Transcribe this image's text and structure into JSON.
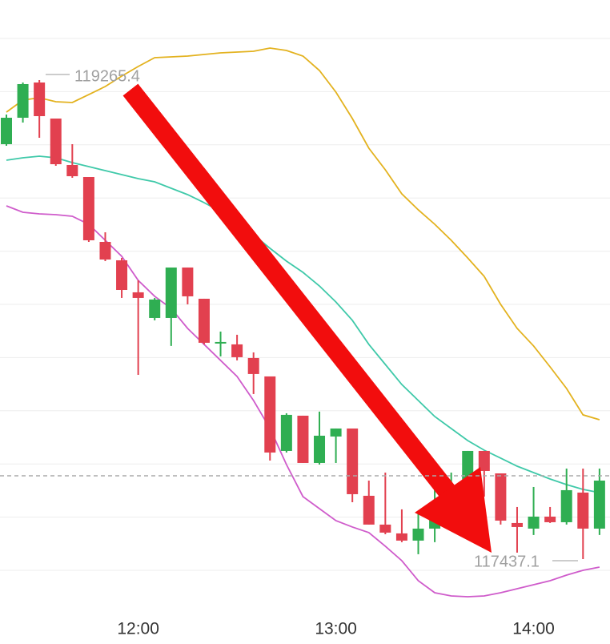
{
  "chart_data": {
    "type": "candlestick",
    "categories": [
      null,
      null,
      null,
      null,
      null,
      null,
      null,
      null,
      "12:00",
      null,
      null,
      null,
      null,
      null,
      null,
      null,
      null,
      null,
      null,
      null,
      "13:00",
      null,
      null,
      null,
      null,
      null,
      null,
      null,
      null,
      null,
      null,
      null,
      "14:00",
      null,
      null,
      null,
      null
    ],
    "open": [
      119020.8,
      119121.7,
      119256.2,
      119118.6,
      118941.3,
      118895.4,
      118647.8,
      118577.5,
      118455.3,
      118357.4,
      118357.4,
      118550.0,
      118430.8,
      118262.7,
      118256.6,
      118204.6,
      118134.3,
      117849.9,
      117984.4,
      117804.0,
      117904.9,
      117935.5,
      117678.7,
      117568.7,
      117535.1,
      117507.6,
      117553.4,
      117614.5,
      117718.4,
      117849.9,
      117764.2,
      117574.8,
      117553.4,
      117599.2,
      117577.8,
      117690.9,
      117553.4
    ],
    "high": [
      119133.9,
      119256.2,
      119265.4,
      119118.6,
      119020.8,
      118895.4,
      118684.5,
      118586.7,
      118501.0,
      118433.9,
      118550.0,
      118550.0,
      118430.8,
      118305.5,
      118293.3,
      118226.0,
      118134.3,
      117993.7,
      117984.4,
      117999.8,
      117935.5,
      117935.5,
      117736.7,
      117767.3,
      117626.8,
      117608.4,
      117706.2,
      117767.3,
      117849.9,
      117849.9,
      117764.2,
      117635.9,
      117712.3,
      117635.9,
      117782.6,
      117782.6,
      117782.6
    ],
    "low": [
      119014.7,
      119103.3,
      119045.2,
      118938.2,
      118892.4,
      118647.8,
      118574.4,
      118433.9,
      118140.4,
      118348.3,
      118250.5,
      118409.4,
      118256.6,
      118210.7,
      118195.5,
      118067.1,
      117813.2,
      117843.8,
      117804.0,
      117797.8,
      117804.0,
      117654.2,
      117568.7,
      117532.0,
      117501.5,
      117455.6,
      117501.5,
      117599.2,
      117690.9,
      117675.6,
      117568.7,
      117461.7,
      117529.0,
      117574.8,
      117568.7,
      117437.1,
      117529.0
    ],
    "close": [
      119121.7,
      119250.1,
      119127.8,
      118944.3,
      118898.5,
      118653.9,
      118580.5,
      118464.3,
      118433.9,
      118427.8,
      118550.0,
      118440.0,
      118262.7,
      118265.8,
      118207.7,
      118143.5,
      117843.8,
      117987.6,
      117804.0,
      117908.0,
      117935.5,
      117684.8,
      117568.7,
      117538.1,
      117507.6,
      117553.4,
      117614.5,
      117718.4,
      117849.9,
      117773.4,
      117583.9,
      117559.5,
      117599.2,
      117577.8,
      117700.1,
      117553.4,
      117736.7
    ],
    "up_color": "#2fae52",
    "down_color": "#e2404f",
    "bands": [
      {
        "color": "#e3b21f",
        "values": [
          119143.1,
          119188.9,
          119198.1,
          119182.8,
          119179.8,
          119210.3,
          119240.9,
          119280.6,
          119317.3,
          119351.0,
          119354.0,
          119357.1,
          119363.2,
          119369.3,
          119372.4,
          119375.4,
          119387.7,
          119378.5,
          119357.1,
          119302.0,
          119219.5,
          119118.6,
          119005.5,
          118922.9,
          118831.2,
          118770.1,
          118715.0,
          118653.9,
          118586.7,
          118516.3,
          118409.4,
          118317.6,
          118250.5,
          118170.8,
          118088.3,
          117987.6,
          117969.0
        ]
      },
      {
        "color": "#3fc9a9",
        "values": [
          118959.6,
          118968.8,
          118974.9,
          118968.8,
          118950.4,
          118935.2,
          118919.9,
          118904.6,
          118889.3,
          118877.1,
          118852.6,
          118828.2,
          118797.6,
          118763.9,
          118721.1,
          118675.3,
          118623.3,
          118574.4,
          118531.6,
          118479.6,
          118418.5,
          118348.3,
          118256.6,
          118180.0,
          118103.5,
          118042.4,
          117981.3,
          117935.5,
          117889.5,
          117852.8,
          117822.3,
          117791.7,
          117767.3,
          117742.8,
          117721.4,
          117703.0,
          117690.9
        ]
      },
      {
        "color": "#cf5ccb",
        "values": [
          118785.3,
          118760.9,
          118754.8,
          118751.7,
          118745.6,
          118715.0,
          118653.9,
          118592.7,
          118501.0,
          118440.0,
          118394.0,
          118317.6,
          118256.6,
          118195.5,
          118134.3,
          118042.4,
          117935.5,
          117797.8,
          117675.6,
          117629.7,
          117583.9,
          117559.5,
          117538.1,
          117486.0,
          117430.9,
          117354.5,
          117308.6,
          117296.4,
          117293.3,
          117296.4,
          117308.6,
          117323.9,
          117339.2,
          117354.5,
          117375.9,
          117394.2,
          117406.5
        ]
      }
    ],
    "last_price": 117755.1,
    "ylim": [
      117216.9,
      119571.1
    ],
    "grid": true,
    "annotations": [
      "119265.4",
      "117437.1"
    ]
  }
}
